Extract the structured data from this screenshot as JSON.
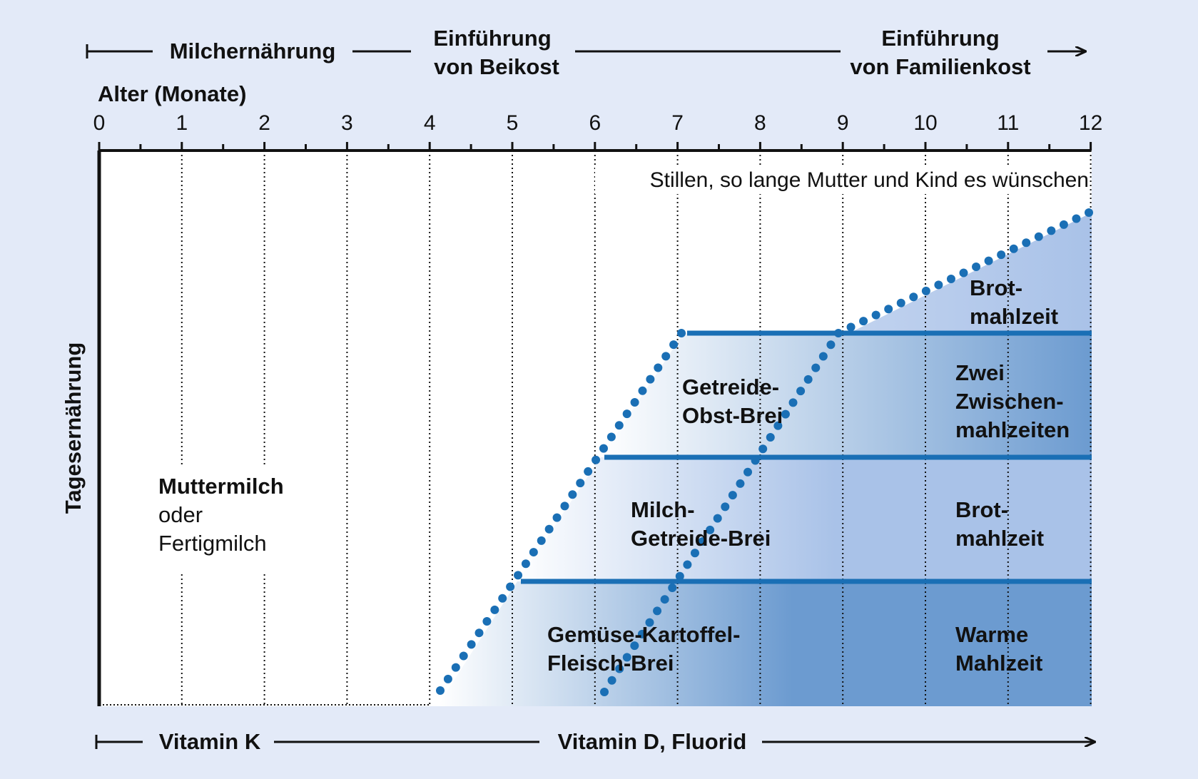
{
  "timeline_top": {
    "phase1": "Milchernährung",
    "phase2_line1": "Einführung",
    "phase2_line2": "von Beikost",
    "phase3_line1": "Einführung",
    "phase3_line2": "von Familienkost"
  },
  "axis": {
    "title": "Alter (Monate)",
    "ticks": [
      "0",
      "1",
      "2",
      "3",
      "4",
      "5",
      "6",
      "7",
      "8",
      "9",
      "10",
      "11",
      "12"
    ]
  },
  "y_label": "Tagesernährung",
  "breastfeeding_note": "Stillen, so lange Mutter und Kind es wünschen",
  "milk_block": {
    "line1": "Muttermilch",
    "line2": "oder",
    "line3": "Fertigmilch"
  },
  "porridges": {
    "vegetable_line1": "Gemüse-Kartoffel-",
    "vegetable_line2": "Fleisch-Brei",
    "milk_cereal_line1": "Milch-",
    "milk_cereal_line2": "Getreide-Brei",
    "cereal_fruit_line1": "Getreide-",
    "cereal_fruit_line2": "Obst-Brei"
  },
  "family_meals": {
    "warm_line1": "Warme",
    "warm_line2": "Mahlzeit",
    "bread1_line1": "Brot-",
    "bread1_line2": "mahlzeit",
    "snacks_line1": "Zwei",
    "snacks_line2": "Zwischen-",
    "snacks_line3": "mahlzeiten",
    "bread2_line1": "Brot-",
    "bread2_line2": "mahlzeit"
  },
  "timeline_bottom": {
    "vitamin_k": "Vitamin K",
    "vitamin_d": "Vitamin D, Fluorid"
  },
  "colors": {
    "background": "#e3eaf8",
    "band_dark": "#6c9bd0",
    "band_light": "#a9c2e8",
    "accent_line": "#1a6fb5",
    "dots": "#1a6fb5"
  }
}
